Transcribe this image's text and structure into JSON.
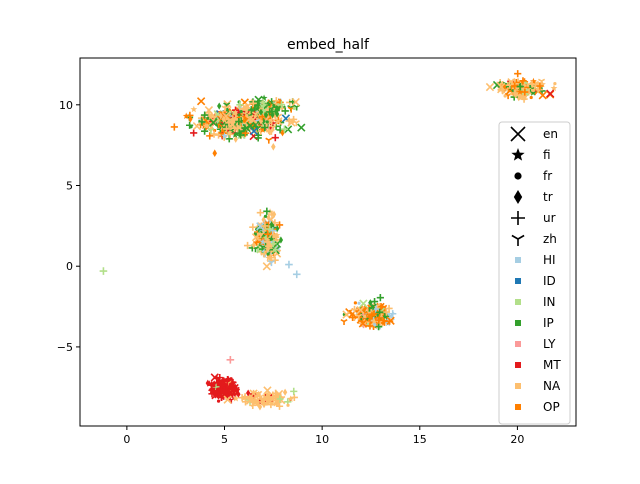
{
  "chart_data": {
    "type": "scatter",
    "title": "embed_half",
    "xlabel": "",
    "ylabel": "",
    "xlim": [
      -2.4,
      23.0
    ],
    "ylim": [
      -9.9,
      12.9
    ],
    "xticks": [
      0,
      5,
      10,
      15,
      20
    ],
    "xtick_labels": [
      "0",
      "5",
      "10",
      "15",
      "20"
    ],
    "yticks": [
      -5,
      0,
      5,
      10
    ],
    "ytick_labels": [
      "−5",
      "0",
      "5",
      "10"
    ],
    "grid": false,
    "legend_position": "right",
    "legend": {
      "markers": [
        {
          "label": "en",
          "marker": "x"
        },
        {
          "label": "fi",
          "marker": "star"
        },
        {
          "label": "fr",
          "marker": "circle"
        },
        {
          "label": "tr",
          "marker": "diamond"
        },
        {
          "label": "ur",
          "marker": "plus"
        },
        {
          "label": "zh",
          "marker": "tri-down"
        }
      ],
      "colors": [
        {
          "label": "HI",
          "color": "#a6cee3"
        },
        {
          "label": "ID",
          "color": "#1f78b4"
        },
        {
          "label": "IN",
          "color": "#b2df8a"
        },
        {
          "label": "IP",
          "color": "#33a02c"
        },
        {
          "label": "LY",
          "color": "#fb9a99"
        },
        {
          "label": "MT",
          "color": "#e31a1c"
        },
        {
          "label": "NA",
          "color": "#fdbf6f"
        },
        {
          "label": "OP",
          "color": "#ff7f00"
        }
      ]
    },
    "clusters": [
      {
        "cx": 5.8,
        "cy": 9.0,
        "sx": 1.6,
        "sy": 0.6,
        "n": 420,
        "seed": 11,
        "colors": {
          "NA": 0.45,
          "IP": 0.18,
          "OP": 0.15,
          "MT": 0.1,
          "IN": 0.06,
          "HI": 0.04,
          "ID": 0.02
        }
      },
      {
        "cx": 7.3,
        "cy": 9.9,
        "sx": 0.7,
        "sy": 0.3,
        "n": 90,
        "seed": 12,
        "colors": {
          "IP": 0.5,
          "NA": 0.25,
          "IN": 0.15,
          "OP": 0.1
        }
      },
      {
        "cx": 20.2,
        "cy": 11.0,
        "sx": 0.9,
        "sy": 0.4,
        "n": 150,
        "seed": 13,
        "colors": {
          "NA": 0.55,
          "OP": 0.2,
          "IP": 0.15,
          "IN": 0.05,
          "MT": 0.05
        }
      },
      {
        "cx": 7.2,
        "cy": 1.8,
        "sx": 0.45,
        "sy": 0.85,
        "n": 200,
        "seed": 14,
        "colors": {
          "NA": 0.5,
          "IP": 0.2,
          "OP": 0.15,
          "HI": 0.1,
          "IN": 0.05
        }
      },
      {
        "cx": 12.5,
        "cy": -3.0,
        "sx": 0.75,
        "sy": 0.45,
        "n": 180,
        "seed": 15,
        "colors": {
          "OP": 0.35,
          "NA": 0.3,
          "IP": 0.15,
          "HI": 0.1,
          "LY": 0.05,
          "IN": 0.05
        }
      },
      {
        "cx": 5.0,
        "cy": -7.6,
        "sx": 0.45,
        "sy": 0.35,
        "n": 260,
        "seed": 16,
        "colors": {
          "MT": 0.9,
          "NA": 0.05,
          "IN": 0.05
        }
      },
      {
        "cx": 6.9,
        "cy": -8.2,
        "sx": 0.9,
        "sy": 0.3,
        "n": 90,
        "seed": 17,
        "colors": {
          "NA": 0.85,
          "IN": 0.1,
          "MT": 0.05
        }
      }
    ],
    "outliers": [
      {
        "x": -1.2,
        "y": -0.3,
        "color": "IN",
        "marker": "plus"
      },
      {
        "x": 5.3,
        "y": -5.8,
        "color": "LY",
        "marker": "plus"
      },
      {
        "x": 8.7,
        "y": -0.5,
        "color": "HI",
        "marker": "plus"
      },
      {
        "x": 8.3,
        "y": 0.1,
        "color": "HI",
        "marker": "plus"
      },
      {
        "x": 7.5,
        "y": 7.4,
        "color": "NA",
        "marker": "diamond"
      },
      {
        "x": 4.5,
        "y": 7.0,
        "color": "OP",
        "marker": "diamond"
      }
    ]
  }
}
